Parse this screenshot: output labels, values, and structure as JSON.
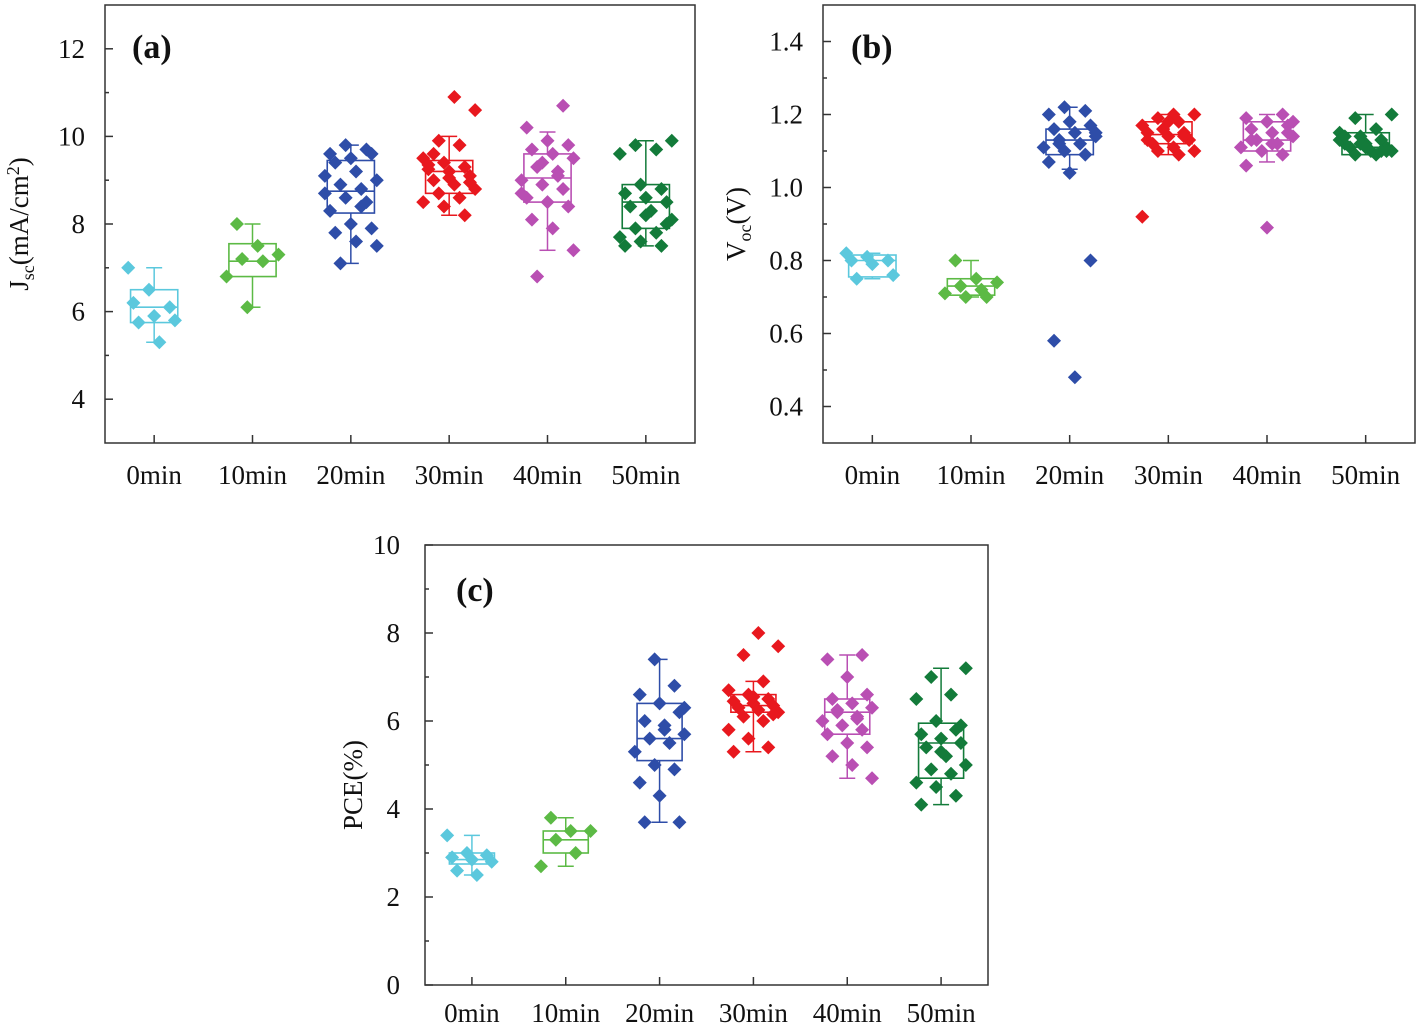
{
  "chart_data": [
    {
      "id": "a",
      "type": "box",
      "panel_label": "(a)",
      "ylabel": {
        "main": "J",
        "sub": "sc",
        "rest": "(mA/cm",
        "sup": "2",
        "end": ")"
      },
      "ylim": [
        3,
        13
      ],
      "yticks": [
        4,
        6,
        8,
        10,
        12
      ],
      "categories": [
        "0min",
        "10min",
        "20min",
        "30min",
        "40min",
        "50min"
      ],
      "series": [
        {
          "name": "0min",
          "color": "#5bc8dd",
          "box": {
            "q1": 5.75,
            "median": 6.1,
            "q3": 6.5,
            "min": 5.3,
            "max": 7.0
          },
          "points": [
            7.0,
            6.5,
            6.1,
            6.2,
            5.9,
            5.8,
            5.75,
            5.3
          ]
        },
        {
          "name": "10min",
          "color": "#5cba45",
          "box": {
            "q1": 6.8,
            "median": 7.15,
            "q3": 7.55,
            "min": 6.1,
            "max": 8.0
          },
          "points": [
            8.0,
            7.5,
            7.3,
            7.2,
            7.15,
            6.8,
            6.1
          ]
        },
        {
          "name": "20min",
          "color": "#2e4da8",
          "box": {
            "q1": 8.25,
            "median": 8.75,
            "q3": 9.45,
            "min": 7.1,
            "max": 9.8
          },
          "points": [
            9.8,
            9.7,
            9.6,
            9.5,
            9.6,
            9.4,
            9.2,
            9.0,
            8.9,
            8.8,
            8.7,
            8.6,
            8.5,
            8.3,
            8.0,
            7.9,
            7.8,
            7.6,
            7.5,
            7.1,
            8.4,
            9.1
          ]
        },
        {
          "name": "30min",
          "color": "#e8181e",
          "box": {
            "q1": 8.7,
            "median": 9.2,
            "q3": 9.45,
            "min": 8.2,
            "max": 10.0
          },
          "points": [
            10.9,
            10.6,
            9.9,
            9.8,
            9.5,
            9.4,
            9.3,
            9.25,
            9.2,
            9.1,
            9.0,
            8.9,
            8.8,
            8.7,
            8.6,
            8.5,
            8.4,
            8.2,
            9.35,
            9.05,
            8.95,
            9.6
          ]
        },
        {
          "name": "40min",
          "color": "#b94fb3",
          "box": {
            "q1": 8.5,
            "median": 9.05,
            "q3": 9.6,
            "min": 7.4,
            "max": 10.1
          },
          "points": [
            10.7,
            10.2,
            9.9,
            9.8,
            9.7,
            9.6,
            9.5,
            9.3,
            9.2,
            9.0,
            8.9,
            8.8,
            8.6,
            8.5,
            8.4,
            8.1,
            7.9,
            7.4,
            6.8,
            9.1,
            8.7,
            9.4
          ]
        },
        {
          "name": "50min",
          "color": "#137b3a",
          "box": {
            "q1": 7.9,
            "median": 8.5,
            "q3": 8.9,
            "min": 7.5,
            "max": 9.9
          },
          "points": [
            9.9,
            9.8,
            9.7,
            9.6,
            8.9,
            8.8,
            8.7,
            8.6,
            8.5,
            8.4,
            8.3,
            8.1,
            7.9,
            7.8,
            7.7,
            7.6,
            7.5,
            7.5,
            8.2,
            8.0
          ]
        }
      ]
    },
    {
      "id": "b",
      "type": "box",
      "panel_label": "(b)",
      "ylabel": {
        "main": "V",
        "sub": "oc",
        "rest": "(V)",
        "sup": "",
        "end": ""
      },
      "ylim": [
        0.3,
        1.5
      ],
      "yticks": [
        0.4,
        0.6,
        0.8,
        1.0,
        1.2,
        1.4
      ],
      "categories": [
        "0min",
        "10min",
        "20min",
        "30min",
        "40min",
        "50min"
      ],
      "series": [
        {
          "name": "0min",
          "color": "#5bc8dd",
          "box": {
            "q1": 0.755,
            "median": 0.8,
            "q3": 0.815,
            "min": 0.75,
            "max": 0.82
          },
          "points": [
            0.82,
            0.81,
            0.8,
            0.8,
            0.79,
            0.76,
            0.75
          ]
        },
        {
          "name": "10min",
          "color": "#5cba45",
          "box": {
            "q1": 0.705,
            "median": 0.73,
            "q3": 0.75,
            "min": 0.7,
            "max": 0.8
          },
          "points": [
            0.8,
            0.75,
            0.74,
            0.73,
            0.72,
            0.71,
            0.7,
            0.7
          ]
        },
        {
          "name": "20min",
          "color": "#2e4da8",
          "box": {
            "q1": 1.09,
            "median": 1.13,
            "q3": 1.16,
            "min": 1.05,
            "max": 1.22
          },
          "points": [
            1.22,
            1.21,
            1.2,
            1.18,
            1.17,
            1.16,
            1.15,
            1.14,
            1.13,
            1.12,
            1.11,
            1.1,
            1.09,
            1.07,
            1.04,
            0.8,
            0.58,
            0.48,
            1.15,
            1.12
          ]
        },
        {
          "name": "30min",
          "color": "#e8181e",
          "box": {
            "q1": 1.12,
            "median": 1.145,
            "q3": 1.18,
            "min": 1.09,
            "max": 1.2
          },
          "points": [
            1.2,
            1.2,
            1.19,
            1.18,
            1.17,
            1.16,
            1.15,
            1.15,
            1.14,
            1.13,
            1.12,
            1.11,
            1.1,
            1.1,
            1.09,
            0.92,
            1.16,
            1.14,
            1.13,
            1.18
          ]
        },
        {
          "name": "40min",
          "color": "#b94fb3",
          "box": {
            "q1": 1.1,
            "median": 1.13,
            "q3": 1.18,
            "min": 1.07,
            "max": 1.2
          },
          "points": [
            1.2,
            1.19,
            1.18,
            1.17,
            1.16,
            1.15,
            1.14,
            1.13,
            1.12,
            1.11,
            1.1,
            1.09,
            1.06,
            0.89,
            1.15,
            1.13,
            1.12,
            1.18
          ]
        },
        {
          "name": "50min",
          "color": "#137b3a",
          "box": {
            "q1": 1.09,
            "median": 1.11,
            "q3": 1.15,
            "min": 1.09,
            "max": 1.2
          },
          "points": [
            1.2,
            1.19,
            1.16,
            1.15,
            1.14,
            1.13,
            1.12,
            1.12,
            1.11,
            1.11,
            1.1,
            1.1,
            1.09,
            1.09,
            1.13,
            1.12,
            1.1,
            1.14,
            1.11,
            1.1
          ]
        }
      ]
    },
    {
      "id": "c",
      "type": "box",
      "panel_label": "(c)",
      "ylabel": {
        "main": "PCE(%)",
        "sub": "",
        "rest": "",
        "sup": "",
        "end": ""
      },
      "ylim": [
        0,
        10
      ],
      "yticks": [
        0,
        2,
        4,
        6,
        8,
        10
      ],
      "categories": [
        "0min",
        "10min",
        "20min",
        "30min",
        "40min",
        "50min"
      ],
      "series": [
        {
          "name": "0min",
          "color": "#5bc8dd",
          "box": {
            "q1": 2.75,
            "median": 2.85,
            "q3": 3.0,
            "min": 2.5,
            "max": 3.4
          },
          "points": [
            3.4,
            3.0,
            2.95,
            2.9,
            2.85,
            2.8,
            2.6,
            2.5
          ]
        },
        {
          "name": "10min",
          "color": "#5cba45",
          "box": {
            "q1": 3.0,
            "median": 3.3,
            "q3": 3.5,
            "min": 2.7,
            "max": 3.8
          },
          "points": [
            3.8,
            3.5,
            3.5,
            3.3,
            3.0,
            2.7
          ]
        },
        {
          "name": "20min",
          "color": "#2e4da8",
          "box": {
            "q1": 5.1,
            "median": 5.6,
            "q3": 6.4,
            "min": 3.7,
            "max": 7.4
          },
          "points": [
            7.4,
            6.8,
            6.6,
            6.4,
            6.2,
            6.0,
            5.8,
            5.7,
            5.6,
            5.5,
            5.3,
            5.0,
            4.9,
            4.6,
            4.3,
            3.7,
            3.7,
            5.9,
            6.3
          ]
        },
        {
          "name": "30min",
          "color": "#e8181e",
          "box": {
            "q1": 6.2,
            "median": 6.35,
            "q3": 6.6,
            "min": 5.3,
            "max": 6.9
          },
          "points": [
            8.0,
            7.7,
            7.5,
            6.9,
            6.7,
            6.6,
            6.5,
            6.45,
            6.4,
            6.35,
            6.3,
            6.25,
            6.2,
            6.1,
            6.0,
            5.8,
            5.6,
            5.4,
            5.3,
            6.55,
            6.15
          ]
        },
        {
          "name": "40min",
          "color": "#b94fb3",
          "box": {
            "q1": 5.7,
            "median": 6.2,
            "q3": 6.5,
            "min": 4.7,
            "max": 7.5
          },
          "points": [
            7.5,
            7.4,
            7.0,
            6.6,
            6.5,
            6.4,
            6.3,
            6.2,
            6.1,
            6.0,
            5.9,
            5.8,
            5.7,
            5.5,
            5.4,
            5.2,
            5.0,
            4.7,
            6.25,
            6.05
          ]
        },
        {
          "name": "50min",
          "color": "#137b3a",
          "box": {
            "q1": 4.7,
            "median": 5.5,
            "q3": 5.95,
            "min": 4.1,
            "max": 7.2
          },
          "points": [
            7.2,
            7.0,
            6.6,
            6.5,
            6.0,
            5.8,
            5.7,
            5.6,
            5.5,
            5.4,
            5.2,
            5.0,
            4.9,
            4.8,
            4.6,
            4.5,
            4.3,
            4.1,
            5.3,
            5.9
          ]
        }
      ]
    }
  ]
}
